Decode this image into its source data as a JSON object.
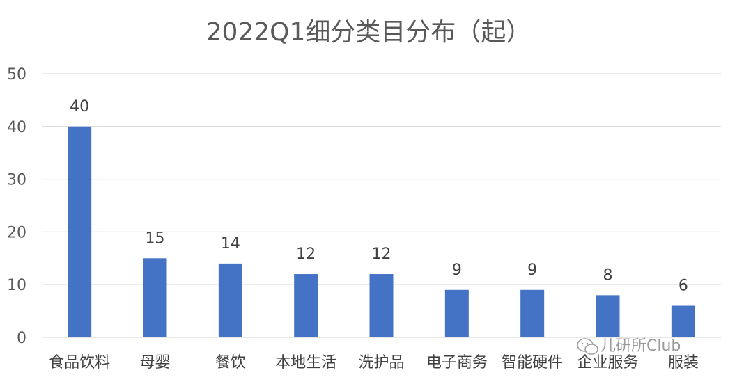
{
  "chart_data": {
    "type": "bar",
    "title": "2022Q1细分类目分布（起）",
    "xlabel": "",
    "ylabel": "",
    "categories": [
      "食品饮料",
      "母婴",
      "餐饮",
      "本地生活",
      "洗护品",
      "电子商务",
      "智能硬件",
      "企业服务",
      "服装"
    ],
    "values": [
      40,
      15,
      14,
      12,
      12,
      9,
      9,
      8,
      6
    ],
    "ylim": [
      0,
      50
    ],
    "yticks": [
      0,
      10,
      20,
      30,
      40,
      50
    ],
    "grid": true,
    "legend": "none",
    "bar_color": "#4472C4",
    "data_labels": true
  },
  "watermark": {
    "text": "儿研所Club",
    "icon": "wechat-icon"
  }
}
